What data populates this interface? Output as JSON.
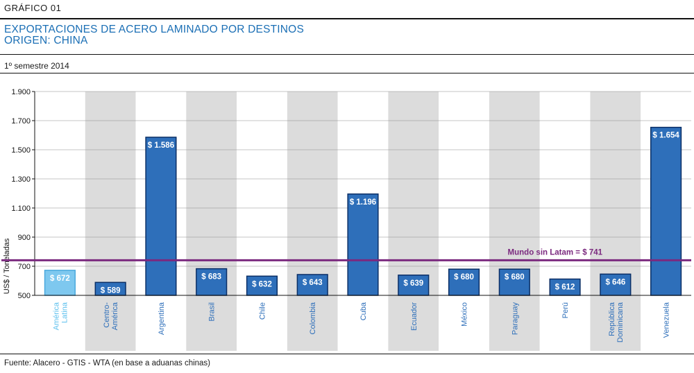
{
  "header": {
    "label": "GRÁFICO  01",
    "title_line1": "EXPORTACIONES DE ACERO LAMINADO POR DESTINOS",
    "title_line2": "ORIGEN: CHINA",
    "period": "1º semestre 2014"
  },
  "footer": {
    "source": "Fuente: Alacero - GTIS - WTA (en base a aduanas chinas)"
  },
  "colors": {
    "bar": "#2e6fba",
    "bar_highlight": "#7ec8ef",
    "bar_stroke": "#0b2f66",
    "band": "#dcdcdc",
    "reference_line": "#7b2a7f",
    "title": "#1b6fb5",
    "label_highlight": "#5cc0ee",
    "label_default": "#2e6fba"
  },
  "chart_data": {
    "type": "bar",
    "ylabel": "US$ / Toneladas",
    "ylim": [
      500,
      1900
    ],
    "yticks": [
      500,
      700,
      900,
      1100,
      1300,
      1500,
      1700,
      1900
    ],
    "ytick_labels": [
      "500",
      "700",
      "900",
      "1.100",
      "1.300",
      "1.500",
      "1.700",
      "1.900"
    ],
    "categories": [
      [
        "América",
        "Latina"
      ],
      [
        "Centro-",
        "América"
      ],
      [
        "Argentina"
      ],
      [
        "Brasil"
      ],
      [
        "Chile"
      ],
      [
        "Colombia"
      ],
      [
        "Cuba"
      ],
      [
        "Ecuador"
      ],
      [
        "México"
      ],
      [
        "Paraguay"
      ],
      [
        "Perú"
      ],
      [
        "República",
        "Dominicana"
      ],
      [
        "Venezuela"
      ]
    ],
    "values": [
      672,
      589,
      1586,
      683,
      632,
      643,
      1196,
      639,
      680,
      680,
      612,
      646,
      1654
    ],
    "value_labels": [
      "$ 672",
      "$ 589",
      "$ 1.586",
      "$ 683",
      "$ 632",
      "$ 643",
      "$ 1.196",
      "$ 639",
      "$ 680",
      "$ 680",
      "$ 612",
      "$ 646",
      "$ 1.654"
    ],
    "highlight_index": 0,
    "reference_line": {
      "value": 741,
      "label": "Mundo sin Latam = $ 741"
    },
    "grid": true
  }
}
